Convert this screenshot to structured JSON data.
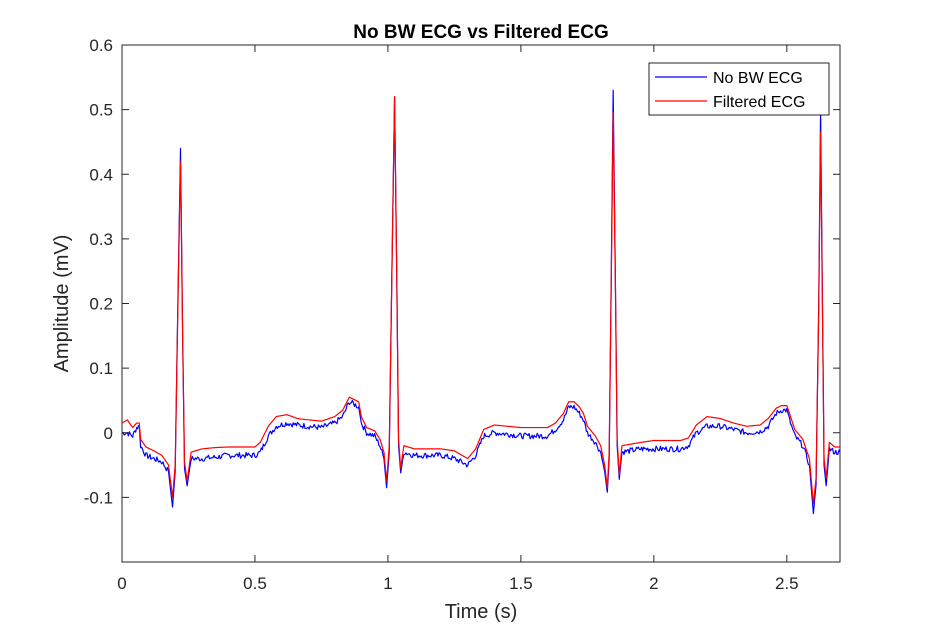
{
  "chart_data": {
    "type": "line",
    "title": "No BW ECG vs Filtered ECG",
    "xlabel": "Time (s)",
    "ylabel": "Amplitude (mV)",
    "xlim": [
      0,
      2.7
    ],
    "ylim": [
      -0.2,
      0.6
    ],
    "xticks": [
      0,
      0.5,
      1,
      1.5,
      2,
      2.5
    ],
    "xtick_labels": [
      "0",
      "0.5",
      "1",
      "1.5",
      "2",
      "2.5"
    ],
    "yticks": [
      -0.1,
      0,
      0.1,
      0.2,
      0.3,
      0.4,
      0.5,
      0.6
    ],
    "ytick_labels": [
      "-0.1",
      "0",
      "0.1",
      "0.2",
      "0.3",
      "0.4",
      "0.5",
      "0.6"
    ],
    "grid": false,
    "legend_position": "top-right",
    "series": [
      {
        "name": "No BW ECG",
        "color": "#0000ff",
        "noise": true,
        "points": [
          [
            0.0,
            0.0
          ],
          [
            0.02,
            0.0
          ],
          [
            0.04,
            -0.005
          ],
          [
            0.055,
            0.008
          ],
          [
            0.065,
            0.01
          ],
          [
            0.07,
            -0.02
          ],
          [
            0.09,
            -0.035
          ],
          [
            0.12,
            -0.04
          ],
          [
            0.15,
            -0.045
          ],
          [
            0.175,
            -0.06
          ],
          [
            0.19,
            -0.115
          ],
          [
            0.2,
            -0.06
          ],
          [
            0.21,
            0.2
          ],
          [
            0.22,
            0.44
          ],
          [
            0.228,
            0.15
          ],
          [
            0.235,
            -0.055
          ],
          [
            0.245,
            -0.082
          ],
          [
            0.26,
            -0.04
          ],
          [
            0.3,
            -0.04
          ],
          [
            0.35,
            -0.038
          ],
          [
            0.4,
            -0.035
          ],
          [
            0.45,
            -0.035
          ],
          [
            0.5,
            -0.035
          ],
          [
            0.52,
            -0.03
          ],
          [
            0.55,
            -0.005
          ],
          [
            0.58,
            0.01
          ],
          [
            0.62,
            0.015
          ],
          [
            0.66,
            0.012
          ],
          [
            0.7,
            0.01
          ],
          [
            0.75,
            0.008
          ],
          [
            0.8,
            0.015
          ],
          [
            0.83,
            0.025
          ],
          [
            0.855,
            0.048
          ],
          [
            0.87,
            0.045
          ],
          [
            0.89,
            0.04
          ],
          [
            0.9,
            0.015
          ],
          [
            0.92,
            0.0
          ],
          [
            0.95,
            -0.005
          ],
          [
            0.97,
            -0.02
          ],
          [
            0.985,
            -0.04
          ],
          [
            0.995,
            -0.085
          ],
          [
            1.005,
            -0.03
          ],
          [
            1.015,
            0.25
          ],
          [
            1.025,
            0.52
          ],
          [
            1.033,
            0.25
          ],
          [
            1.04,
            -0.02
          ],
          [
            1.048,
            -0.062
          ],
          [
            1.06,
            -0.03
          ],
          [
            1.1,
            -0.035
          ],
          [
            1.15,
            -0.035
          ],
          [
            1.2,
            -0.035
          ],
          [
            1.25,
            -0.04
          ],
          [
            1.3,
            -0.05
          ],
          [
            1.33,
            -0.035
          ],
          [
            1.36,
            -0.005
          ],
          [
            1.4,
            0.0
          ],
          [
            1.45,
            -0.002
          ],
          [
            1.5,
            -0.005
          ],
          [
            1.55,
            -0.005
          ],
          [
            1.6,
            -0.005
          ],
          [
            1.63,
            0.005
          ],
          [
            1.66,
            0.02
          ],
          [
            1.68,
            0.04
          ],
          [
            1.7,
            0.04
          ],
          [
            1.72,
            0.03
          ],
          [
            1.735,
            0.02
          ],
          [
            1.75,
            0.0
          ],
          [
            1.78,
            -0.015
          ],
          [
            1.8,
            -0.03
          ],
          [
            1.815,
            -0.06
          ],
          [
            1.825,
            -0.092
          ],
          [
            1.832,
            -0.04
          ],
          [
            1.84,
            0.25
          ],
          [
            1.847,
            0.53
          ],
          [
            1.855,
            0.25
          ],
          [
            1.862,
            -0.02
          ],
          [
            1.87,
            -0.072
          ],
          [
            1.88,
            -0.03
          ],
          [
            1.95,
            -0.025
          ],
          [
            2.0,
            -0.025
          ],
          [
            2.05,
            -0.025
          ],
          [
            2.1,
            -0.025
          ],
          [
            2.13,
            -0.02
          ],
          [
            2.16,
            0.0
          ],
          [
            2.2,
            0.01
          ],
          [
            2.25,
            0.01
          ],
          [
            2.3,
            0.005
          ],
          [
            2.35,
            0.0
          ],
          [
            2.4,
            0.002
          ],
          [
            2.43,
            0.01
          ],
          [
            2.46,
            0.03
          ],
          [
            2.48,
            0.035
          ],
          [
            2.5,
            0.035
          ],
          [
            2.51,
            0.02
          ],
          [
            2.53,
            -0.005
          ],
          [
            2.56,
            -0.02
          ],
          [
            2.585,
            -0.05
          ],
          [
            2.6,
            -0.125
          ],
          [
            2.61,
            -0.08
          ],
          [
            2.62,
            0.2
          ],
          [
            2.627,
            0.5
          ],
          [
            2.634,
            0.2
          ],
          [
            2.64,
            -0.05
          ],
          [
            2.648,
            -0.082
          ],
          [
            2.66,
            -0.025
          ],
          [
            2.68,
            -0.03
          ],
          [
            2.7,
            -0.03
          ]
        ]
      },
      {
        "name": "Filtered ECG",
        "color": "#ff0000",
        "noise": false,
        "points": [
          [
            0.0,
            0.015
          ],
          [
            0.02,
            0.02
          ],
          [
            0.04,
            0.008
          ],
          [
            0.055,
            0.015
          ],
          [
            0.065,
            0.015
          ],
          [
            0.07,
            -0.01
          ],
          [
            0.09,
            -0.022
          ],
          [
            0.12,
            -0.028
          ],
          [
            0.15,
            -0.035
          ],
          [
            0.175,
            -0.05
          ],
          [
            0.19,
            -0.1
          ],
          [
            0.2,
            -0.05
          ],
          [
            0.21,
            0.19
          ],
          [
            0.22,
            0.42
          ],
          [
            0.228,
            0.15
          ],
          [
            0.235,
            -0.045
          ],
          [
            0.245,
            -0.075
          ],
          [
            0.26,
            -0.03
          ],
          [
            0.3,
            -0.025
          ],
          [
            0.35,
            -0.023
          ],
          [
            0.4,
            -0.022
          ],
          [
            0.45,
            -0.022
          ],
          [
            0.5,
            -0.022
          ],
          [
            0.52,
            -0.015
          ],
          [
            0.55,
            0.01
          ],
          [
            0.58,
            0.025
          ],
          [
            0.62,
            0.028
          ],
          [
            0.66,
            0.022
          ],
          [
            0.7,
            0.02
          ],
          [
            0.75,
            0.018
          ],
          [
            0.8,
            0.025
          ],
          [
            0.83,
            0.035
          ],
          [
            0.855,
            0.055
          ],
          [
            0.87,
            0.052
          ],
          [
            0.89,
            0.048
          ],
          [
            0.9,
            0.025
          ],
          [
            0.92,
            0.008
          ],
          [
            0.95,
            0.003
          ],
          [
            0.97,
            -0.01
          ],
          [
            0.985,
            -0.03
          ],
          [
            0.995,
            -0.075
          ],
          [
            1.005,
            -0.02
          ],
          [
            1.015,
            0.25
          ],
          [
            1.025,
            0.52
          ],
          [
            1.033,
            0.25
          ],
          [
            1.04,
            -0.01
          ],
          [
            1.048,
            -0.055
          ],
          [
            1.06,
            -0.02
          ],
          [
            1.1,
            -0.025
          ],
          [
            1.15,
            -0.025
          ],
          [
            1.2,
            -0.025
          ],
          [
            1.25,
            -0.028
          ],
          [
            1.3,
            -0.04
          ],
          [
            1.33,
            -0.025
          ],
          [
            1.36,
            0.005
          ],
          [
            1.4,
            0.012
          ],
          [
            1.45,
            0.01
          ],
          [
            1.5,
            0.008
          ],
          [
            1.55,
            0.008
          ],
          [
            1.6,
            0.008
          ],
          [
            1.63,
            0.015
          ],
          [
            1.66,
            0.03
          ],
          [
            1.68,
            0.048
          ],
          [
            1.7,
            0.048
          ],
          [
            1.72,
            0.04
          ],
          [
            1.735,
            0.03
          ],
          [
            1.75,
            0.01
          ],
          [
            1.78,
            -0.005
          ],
          [
            1.8,
            -0.02
          ],
          [
            1.815,
            -0.05
          ],
          [
            1.825,
            -0.085
          ],
          [
            1.832,
            -0.03
          ],
          [
            1.84,
            0.24
          ],
          [
            1.847,
            0.495
          ],
          [
            1.855,
            0.24
          ],
          [
            1.862,
            -0.01
          ],
          [
            1.87,
            -0.065
          ],
          [
            1.88,
            -0.02
          ],
          [
            1.95,
            -0.015
          ],
          [
            2.0,
            -0.012
          ],
          [
            2.05,
            -0.012
          ],
          [
            2.1,
            -0.012
          ],
          [
            2.13,
            -0.008
          ],
          [
            2.16,
            0.012
          ],
          [
            2.2,
            0.025
          ],
          [
            2.25,
            0.022
          ],
          [
            2.3,
            0.015
          ],
          [
            2.35,
            0.01
          ],
          [
            2.4,
            0.012
          ],
          [
            2.43,
            0.022
          ],
          [
            2.46,
            0.038
          ],
          [
            2.48,
            0.042
          ],
          [
            2.5,
            0.042
          ],
          [
            2.51,
            0.03
          ],
          [
            2.53,
            0.005
          ],
          [
            2.56,
            -0.01
          ],
          [
            2.585,
            -0.04
          ],
          [
            2.6,
            -0.11
          ],
          [
            2.61,
            -0.07
          ],
          [
            2.62,
            0.19
          ],
          [
            2.627,
            0.465
          ],
          [
            2.634,
            0.19
          ],
          [
            2.64,
            -0.04
          ],
          [
            2.648,
            -0.07
          ],
          [
            2.66,
            -0.015
          ],
          [
            2.68,
            -0.022
          ],
          [
            2.7,
            -0.022
          ]
        ]
      }
    ]
  }
}
